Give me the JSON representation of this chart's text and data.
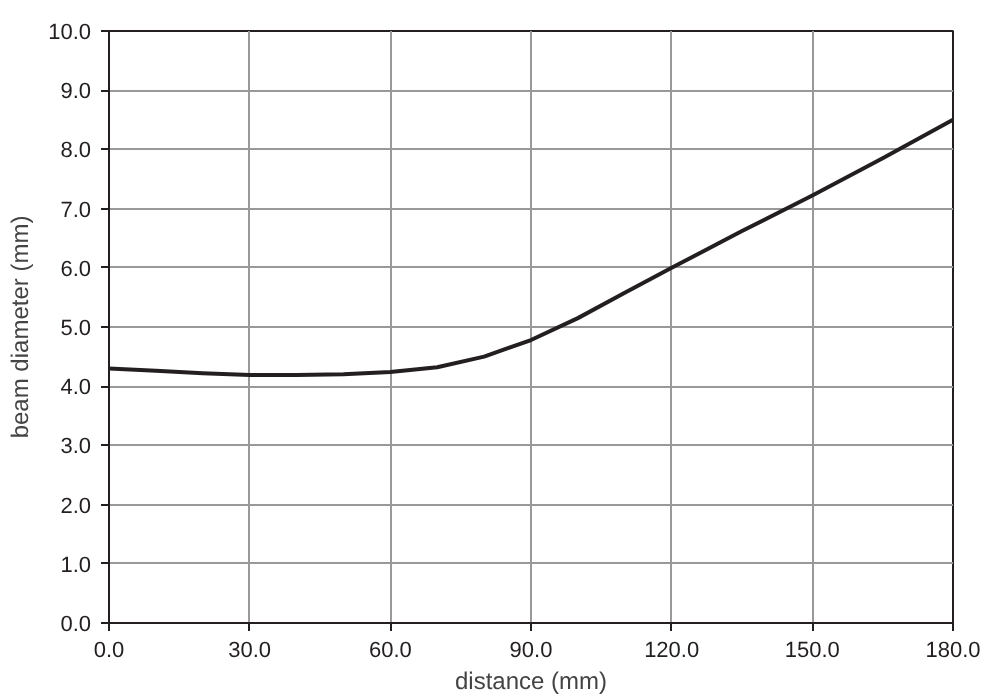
{
  "chart_data": {
    "type": "line",
    "xlabel": "distance (mm)",
    "ylabel": "beam diameter (mm)",
    "series": [
      {
        "color": "#231f20",
        "x": [
          0,
          10,
          20,
          30,
          40,
          50,
          60,
          70,
          80,
          90,
          100,
          110,
          120,
          135,
          150,
          165,
          180
        ],
        "values": [
          4.3,
          4.26,
          4.22,
          4.19,
          4.19,
          4.2,
          4.24,
          4.32,
          4.5,
          4.78,
          5.15,
          5.58,
          6.0,
          6.62,
          7.22,
          7.85,
          8.5
        ]
      }
    ],
    "xlim": [
      0,
      180
    ],
    "ylim": [
      0,
      10
    ],
    "xticks": [
      {
        "value": 0,
        "label": "0.0"
      },
      {
        "value": 30,
        "label": "30.0"
      },
      {
        "value": 60,
        "label": "60.0"
      },
      {
        "value": 90,
        "label": "90.0"
      },
      {
        "value": 120,
        "label": "120.0"
      },
      {
        "value": 150,
        "label": "150.0"
      },
      {
        "value": 180,
        "label": "180.0"
      }
    ],
    "yticks": [
      {
        "value": 0,
        "label": "0.0"
      },
      {
        "value": 1,
        "label": "1.0"
      },
      {
        "value": 2,
        "label": "2.0"
      },
      {
        "value": 3,
        "label": "3.0"
      },
      {
        "value": 4,
        "label": "4.0"
      },
      {
        "value": 5,
        "label": "5.0"
      },
      {
        "value": 6,
        "label": "6.0"
      },
      {
        "value": 7,
        "label": "7.0"
      },
      {
        "value": 8,
        "label": "8.0"
      },
      {
        "value": 9,
        "label": "9.0"
      },
      {
        "value": 10,
        "label": "10.0"
      }
    ],
    "grid": true,
    "marker": "none",
    "line_style": "solid"
  }
}
